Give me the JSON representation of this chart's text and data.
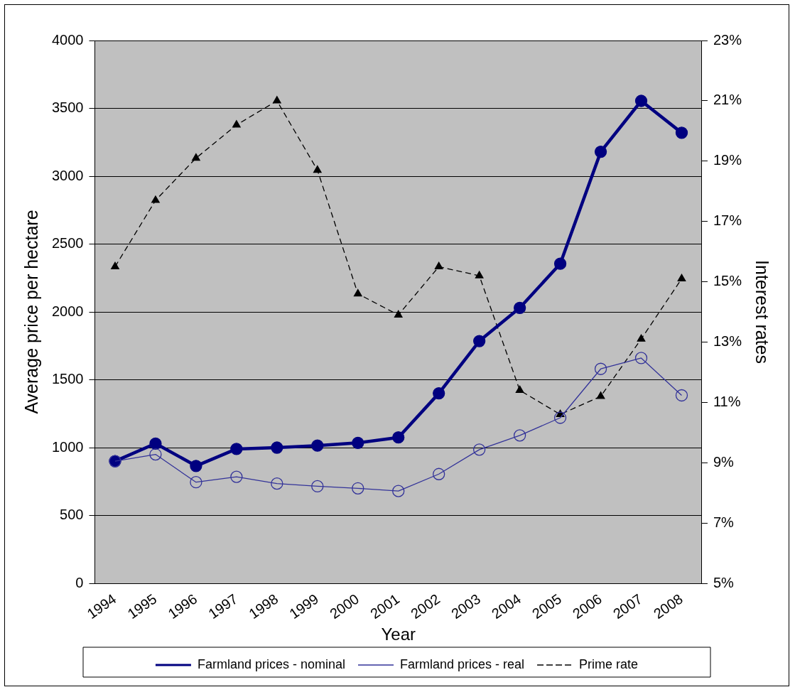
{
  "chart_data": {
    "type": "line",
    "xlabel": "Year",
    "ylabel": "Average price per hectare",
    "y2label": "Interest rates",
    "categories": [
      "1994",
      "1995",
      "1996",
      "1997",
      "1998",
      "1999",
      "2000",
      "2001",
      "2002",
      "2003",
      "2004",
      "2005",
      "2006",
      "2007",
      "2008"
    ],
    "series": [
      {
        "name": "Farmland prices - nominal",
        "color": "#000080",
        "marker": "circle",
        "line_style": "solid",
        "values": [
          900,
          1030,
          865,
          990,
          1000,
          1015,
          1035,
          1075,
          1400,
          1785,
          2030,
          2355,
          3180,
          3555,
          3320
        ]
      },
      {
        "name": "Farmland prices - real",
        "color": "#333399",
        "marker": "circle",
        "line_style": "solid",
        "values": [
          900,
          950,
          745,
          785,
          735,
          715,
          700,
          680,
          805,
          985,
          1090,
          1220,
          1580,
          1660,
          1385
        ]
      },
      {
        "name": "Prime rate",
        "color": "#000000",
        "marker": "triangle",
        "line_style": "dashed",
        "axis": "y2",
        "values": [
          15.5,
          17.7,
          19.1,
          20.2,
          21.0,
          18.7,
          14.6,
          13.9,
          15.5,
          15.2,
          11.4,
          10.6,
          11.2,
          13.1,
          15.1
        ]
      }
    ],
    "ylim": [
      0,
      4000
    ],
    "yticks": [
      0,
      500,
      1000,
      1500,
      2000,
      2500,
      3000,
      3500,
      4000
    ],
    "y2lim": [
      5,
      23
    ],
    "y2ticks": [
      {
        "value": 5,
        "label": "5%"
      },
      {
        "value": 7,
        "label": "7%"
      },
      {
        "value": 9,
        "label": "9%"
      },
      {
        "value": 11,
        "label": "11%"
      },
      {
        "value": 13,
        "label": "13%"
      },
      {
        "value": 15,
        "label": "15%"
      },
      {
        "value": 17,
        "label": "17%"
      },
      {
        "value": 19,
        "label": "19%"
      },
      {
        "value": 21,
        "label": "21%"
      },
      {
        "value": 23,
        "label": "23%"
      }
    ],
    "grid": "y",
    "legend": "bottom"
  }
}
